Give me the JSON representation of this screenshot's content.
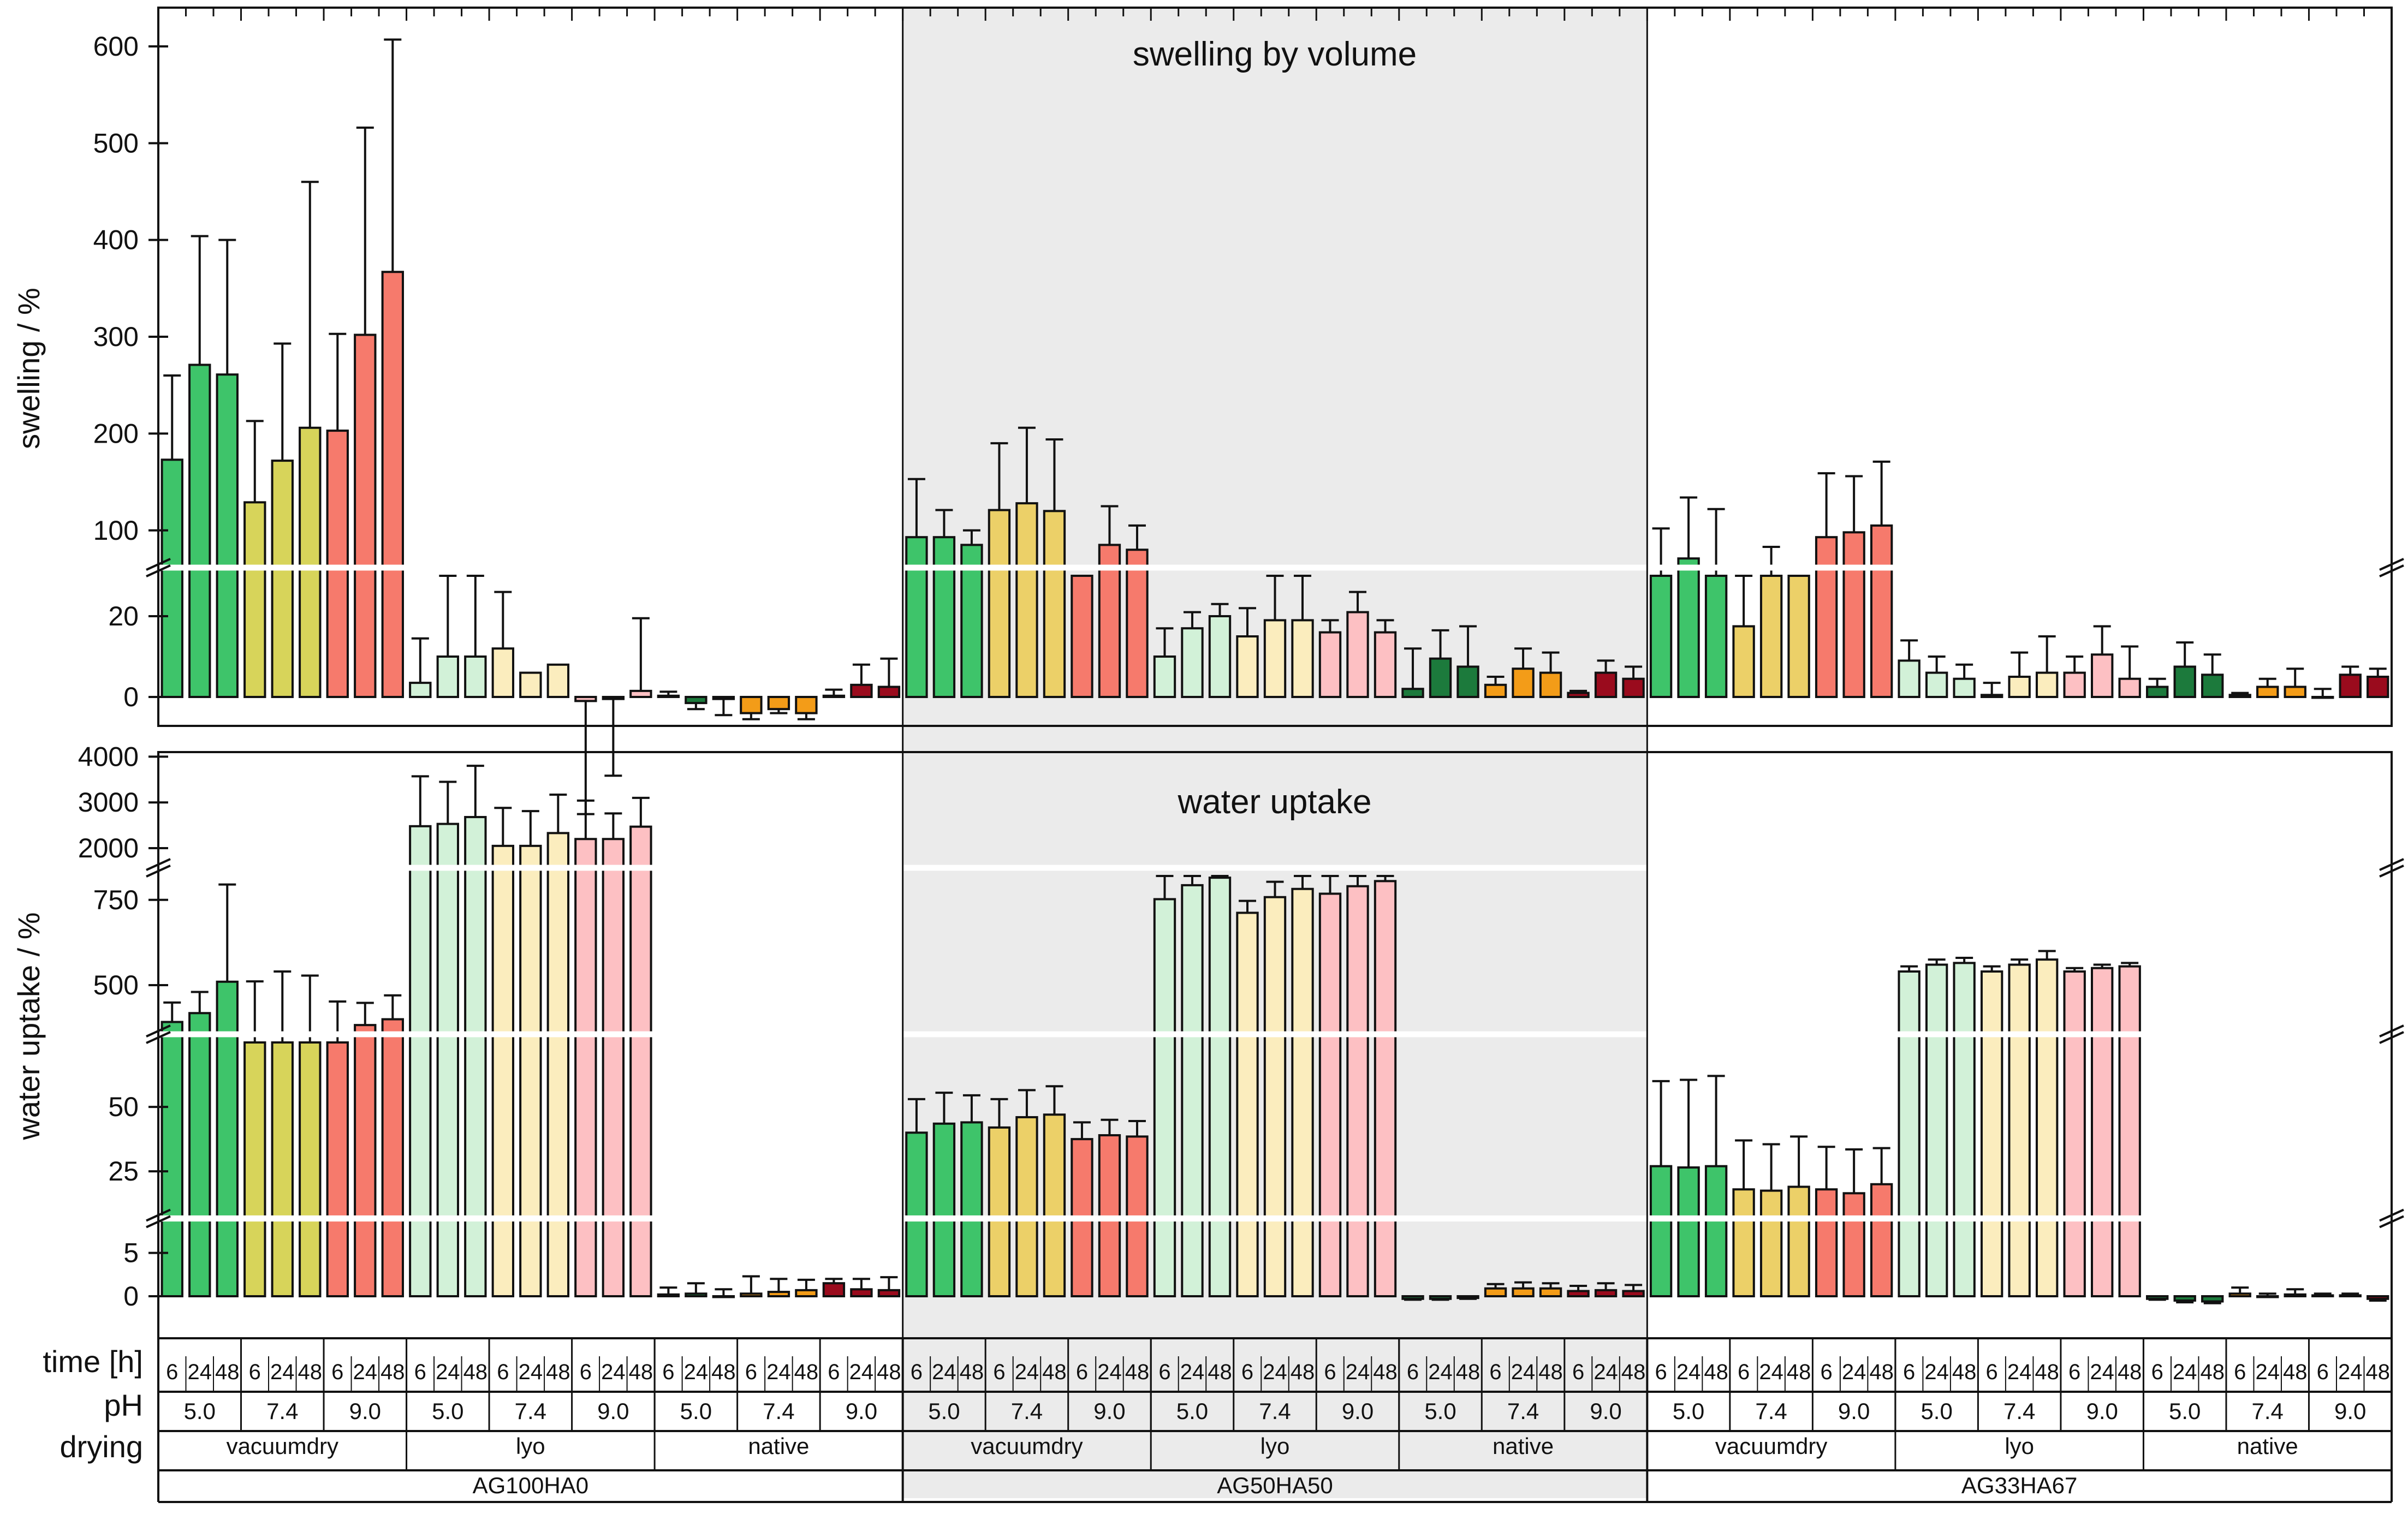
{
  "chart_data": {
    "type": "bar",
    "groups": [
      "AG100HA0",
      "AG50HA50",
      "AG33HA67"
    ],
    "drying": [
      "vacuumdry",
      "lyo",
      "native"
    ],
    "ph": [
      "5.0",
      "7.4",
      "9.0"
    ],
    "time": [
      "6",
      "24",
      "48"
    ],
    "table_labels": {
      "time": "time [h]",
      "ph": "pH",
      "drying": "drying"
    },
    "colors": {
      "vacuumdry": [
        "#3ec46a",
        "#ecd068",
        "#f67a6c"
      ],
      "vacuumdry_AG100HA0": [
        "#3ec46a",
        "#d7d45a",
        "#f67a6c"
      ],
      "lyo": [
        "#d2f1d8",
        "#fbedbe",
        "#fdc0c3"
      ],
      "native": [
        "#1c7a3c",
        "#f39c18",
        "#9a0b1d"
      ],
      "shade": "#ebebeb"
    },
    "panels": [
      {
        "title": "swelling by volume",
        "ylabel": "swelling / %",
        "segments": [
          {
            "range": [
              0,
              30
            ],
            "ticks": [
              0,
              20
            ]
          },
          {
            "range": [
              70,
              640
            ],
            "ticks": [
              100,
              200,
              300,
              400,
              500,
              600
            ]
          }
        ],
        "series": [
          {
            "group": "AG100HA0",
            "drying": "vacuumdry",
            "values": [
              173,
              271,
              261,
              129,
              172,
              206,
              203,
              302,
              367
            ],
            "errors": [
              87,
              133,
              139,
              84,
              121,
              254,
              100,
              214,
              240
            ]
          },
          {
            "group": "AG100HA0",
            "drying": "lyo",
            "values": [
              3.5,
              10,
              10,
              12,
              6,
              8,
              -1,
              -0.5,
              1.5
            ],
            "errors": [
              11,
              24,
              25,
              14,
              0,
              0,
              28,
              19,
              18
            ]
          },
          {
            "group": "AG100HA0",
            "drying": "native",
            "values": [
              0.3,
              -1.5,
              -0.5,
              -4,
              -3,
              -4,
              0.3,
              3,
              2.5
            ],
            "errors": [
              1,
              1.5,
              4,
              1.5,
              1,
              1.5,
              1.5,
              5,
              7
            ]
          },
          {
            "group": "AG50HA50",
            "drying": "vacuumdry",
            "values": [
              93,
              93,
              85,
              121,
              128,
              120,
              50,
              85,
              80
            ],
            "errors": [
              60,
              28,
              15,
              69,
              78,
              74,
              0,
              40,
              25
            ]
          },
          {
            "group": "AG50HA50",
            "drying": "lyo",
            "values": [
              10,
              17,
              20,
              15,
              19,
              19,
              16,
              21,
              16
            ],
            "errors": [
              7,
              4,
              3,
              7,
              11,
              11,
              3,
              5,
              3
            ]
          },
          {
            "group": "AG50HA50",
            "drying": "native",
            "values": [
              2,
              9.5,
              7.5,
              3,
              7,
              6,
              1,
              6,
              4.5
            ],
            "errors": [
              10,
              7,
              10,
              2,
              5,
              5,
              0.5,
              3,
              3
            ]
          },
          {
            "group": "AG33HA67",
            "drying": "vacuumdry",
            "values": [
              64,
              71,
              67,
              17.5,
              57,
              50,
              93,
              98,
              105
            ],
            "errors": [
              38,
              63,
              55,
              16,
              26,
              9,
              66,
              58,
              66
            ]
          },
          {
            "group": "AG33HA67",
            "drying": "lyo",
            "values": [
              9,
              6,
              4.5,
              0.5,
              5,
              6,
              6,
              10.5,
              4.5
            ],
            "errors": [
              5,
              4,
              3.5,
              3,
              6,
              9,
              4,
              7,
              8
            ]
          },
          {
            "group": "AG33HA67",
            "drying": "native",
            "values": [
              2.5,
              7.5,
              5.5,
              0.5,
              2.5,
              2.5,
              0,
              5.5,
              5
            ],
            "errors": [
              2,
              6,
              5,
              0.5,
              2,
              4.5,
              2,
              2,
              2
            ]
          }
        ]
      },
      {
        "title": "water uptake",
        "ylabel": "water uptake / %",
        "segments": [
          {
            "range": [
              0,
              8
            ],
            "ticks": [
              0,
              5
            ]
          },
          {
            "range": [
              10,
              75
            ],
            "ticks": [
              25,
              50
            ]
          },
          {
            "range": [
              380,
              820
            ],
            "ticks": [
              500,
              750
            ]
          },
          {
            "range": [
              1750,
              4100
            ],
            "ticks": [
              2000,
              3000,
              4000
            ]
          }
        ],
        "series": [
          {
            "group": "AG100HA0",
            "drying": "vacuumdry",
            "values": [
              392,
              418,
              510,
              344,
              350,
              348,
              372,
              383,
              400
            ],
            "errors": [
              57,
              62,
              285,
              167,
              190,
              180,
              80,
              65,
              70
            ]
          },
          {
            "group": "AG100HA0",
            "drying": "lyo",
            "values": [
              2480,
              2530,
              2680,
              2050,
              2050,
              2330,
              2200,
              2200,
              2470
            ],
            "errors": [
              1090,
              920,
              1120,
              830,
              760,
              840,
              840,
              560,
              630
            ]
          },
          {
            "group": "AG100HA0",
            "drying": "native",
            "values": [
              0.2,
              0.3,
              0,
              0.3,
              0.5,
              0.7,
              1.5,
              0.8,
              0.7
            ],
            "errors": [
              0.8,
              1.2,
              0.8,
              2,
              1.5,
              1.2,
              0.5,
              1.2,
              1.5
            ]
          },
          {
            "group": "AG50HA50",
            "drying": "vacuumdry",
            "values": [
              40,
              43.5,
              44,
              42,
              46,
              47,
              37.5,
              39,
              38.5
            ],
            "errors": [
              13,
              12,
              10.5,
              11,
              10.5,
              11,
              6.5,
              6,
              6
            ]
          },
          {
            "group": "AG50HA50",
            "drying": "lyo",
            "values": [
              752,
              793,
              815,
              712,
              758,
              782,
              768,
              790,
              805
            ],
            "errors": [
              70,
              35,
              60,
              35,
              45,
              55,
              85,
              65,
              65
            ]
          },
          {
            "group": "AG50HA50",
            "drying": "native",
            "values": [
              -0.3,
              -0.3,
              -0.2,
              0.9,
              0.9,
              0.9,
              0.6,
              0.7,
              0.6
            ],
            "errors": [
              0.1,
              0.1,
              0.1,
              0.5,
              0.7,
              0.6,
              0.6,
              0.8,
              0.7
            ]
          },
          {
            "group": "AG33HA67",
            "drying": "vacuumdry",
            "values": [
              27,
              26.5,
              27,
              18,
              17.5,
              19,
              18,
              16.5,
              20
            ],
            "errors": [
              33,
              34,
              35,
              19,
              18,
              19.5,
              16.5,
              17,
              14
            ]
          },
          {
            "group": "AG33HA67",
            "drying": "lyo",
            "values": [
              540,
              560,
              565,
              540,
              560,
              575,
              540,
              550,
              555
            ],
            "errors": [
              15,
              15,
              15,
              15,
              15,
              25,
              10,
              10,
              10
            ]
          },
          {
            "group": "AG33HA67",
            "drying": "native",
            "values": [
              -0.3,
              -0.5,
              -0.6,
              0.3,
              0,
              0.2,
              0.1,
              0.1,
              -0.3
            ],
            "errors": [
              0.1,
              0.2,
              0.2,
              0.7,
              0.3,
              0.6,
              0.2,
              0.2,
              0.2
            ]
          }
        ]
      }
    ]
  }
}
